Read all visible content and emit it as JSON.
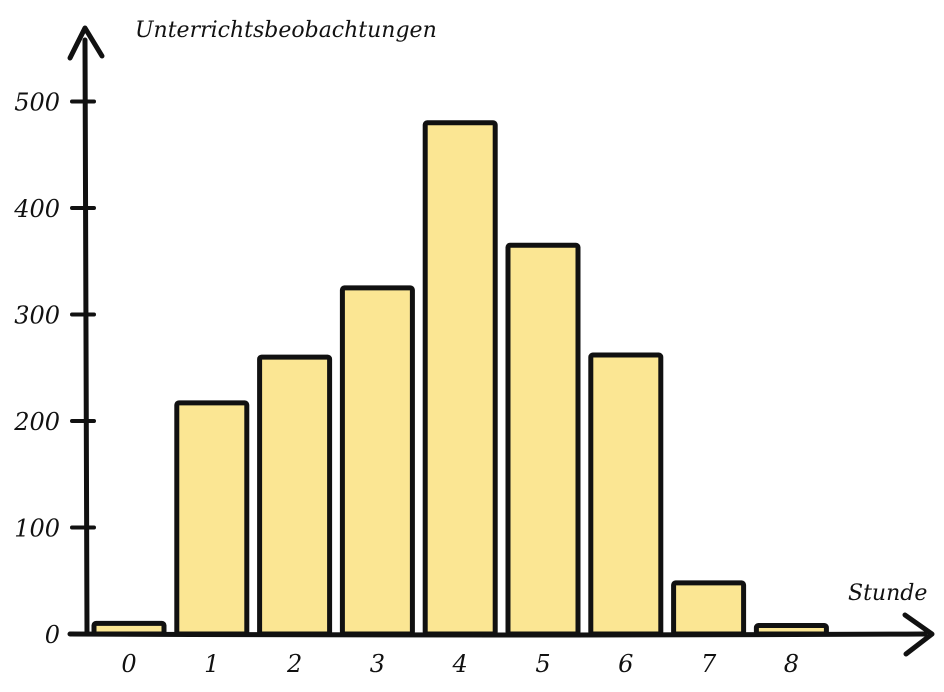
{
  "chart_data": {
    "type": "bar",
    "categories": [
      "0",
      "1",
      "2",
      "3",
      "4",
      "5",
      "6",
      "7",
      "8"
    ],
    "values": [
      10,
      217,
      260,
      325,
      480,
      365,
      262,
      48,
      8
    ],
    "ylabel": "Unterrichtsbeobachtungen",
    "xlabel": "Stunde",
    "yticks": [
      "0",
      "100",
      "200",
      "300",
      "400",
      "500"
    ],
    "ylim": [
      0,
      550
    ],
    "grid": false,
    "bar_color": "#fbe693",
    "outline_color": "#111111"
  }
}
